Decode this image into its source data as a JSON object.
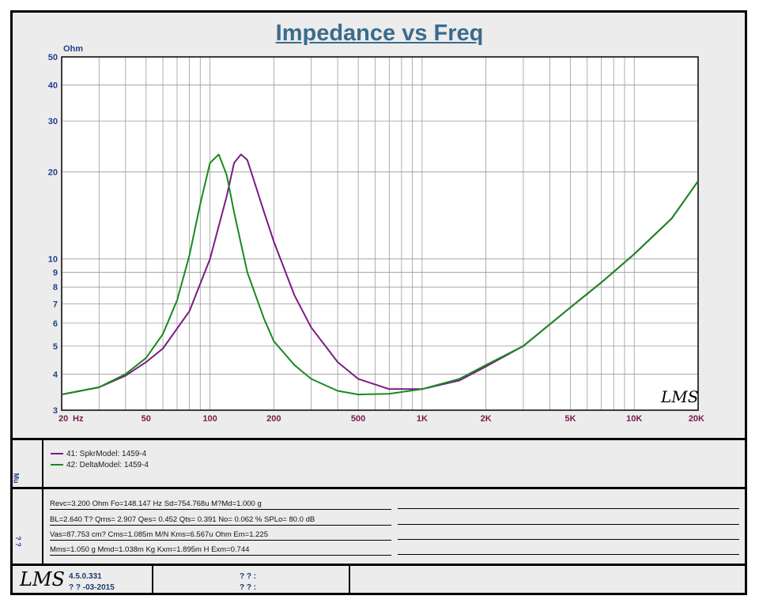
{
  "header": {
    "title": "Impedance vs Freq"
  },
  "chart_data": {
    "type": "line",
    "title": "Impedance vs Freq",
    "ylabel": "Ohm",
    "xlabel": "Hz",
    "xscale": "log",
    "yscale": "log",
    "xlim": [
      20,
      20000
    ],
    "ylim": [
      3,
      50
    ],
    "grid": true,
    "x_ticks": [
      {
        "v": 20,
        "label": "20"
      },
      {
        "v": 50,
        "label": "50"
      },
      {
        "v": 100,
        "label": "100"
      },
      {
        "v": 200,
        "label": "200"
      },
      {
        "v": 500,
        "label": "500"
      },
      {
        "v": 1000,
        "label": "1K"
      },
      {
        "v": 2000,
        "label": "2K"
      },
      {
        "v": 5000,
        "label": "5K"
      },
      {
        "v": 10000,
        "label": "10K"
      },
      {
        "v": 20000,
        "label": "20K"
      }
    ],
    "y_ticks": [
      {
        "v": 3,
        "label": "3"
      },
      {
        "v": 4,
        "label": "4"
      },
      {
        "v": 5,
        "label": "5"
      },
      {
        "v": 6,
        "label": "6"
      },
      {
        "v": 7,
        "label": "7"
      },
      {
        "v": 8,
        "label": "8"
      },
      {
        "v": 9,
        "label": "9"
      },
      {
        "v": 10,
        "label": "10"
      },
      {
        "v": 20,
        "label": "20"
      },
      {
        "v": 30,
        "label": "30"
      },
      {
        "v": 40,
        "label": "40"
      },
      {
        "v": 50,
        "label": "50"
      }
    ],
    "series": [
      {
        "name": "41: SpkrModel: 1459-4",
        "color": "#7b1a86",
        "x": [
          20,
          30,
          40,
          50,
          60,
          80,
          100,
          120,
          130,
          140,
          150,
          160,
          180,
          200,
          250,
          300,
          400,
          500,
          700,
          1000,
          1500,
          2000,
          3000,
          5000,
          7000,
          10000,
          15000,
          20000
        ],
        "y": [
          3.4,
          3.6,
          3.95,
          4.4,
          4.9,
          6.6,
          10.0,
          16.5,
          21.5,
          23.0,
          22.0,
          19.0,
          14.5,
          11.5,
          7.5,
          5.8,
          4.4,
          3.85,
          3.55,
          3.55,
          3.8,
          4.25,
          5.0,
          6.8,
          8.3,
          10.4,
          13.8,
          18.6
        ]
      },
      {
        "name": "42: DeltaModel: 1459-4",
        "color": "#1a8a1e",
        "x": [
          20,
          30,
          40,
          50,
          60,
          70,
          80,
          90,
          100,
          110,
          120,
          130,
          150,
          180,
          200,
          250,
          300,
          400,
          500,
          700,
          1000,
          1500,
          2000,
          3000,
          5000,
          7000,
          10000,
          15000,
          20000
        ],
        "y": [
          3.4,
          3.6,
          4.0,
          4.55,
          5.5,
          7.2,
          10.3,
          15.5,
          21.5,
          23.0,
          19.5,
          14.5,
          9.0,
          6.2,
          5.2,
          4.3,
          3.85,
          3.5,
          3.4,
          3.42,
          3.55,
          3.85,
          4.3,
          5.0,
          6.8,
          8.3,
          10.4,
          13.8,
          18.6
        ]
      }
    ]
  },
  "legend": [
    {
      "label": "41: SpkrModel: 1459-4",
      "color": "#7b1a86"
    },
    {
      "label": "42: DeltaModel: 1459-4",
      "color": "#1a8a1e"
    }
  ],
  "params": [
    "Revc=3.200 Ohm  Fo=148.147 Hz  Sd=754.768u M?Md=1.000 g",
    "BL=2.640 T?   Qms= 2.907  Qes= 0.452  Qts= 0.391  No= 0.062 %  SPLo= 80.0 dB",
    "Vas=87.753 cm? Cms=1.085m M/N  Kms=6.567u Ohm  Em=1.225",
    "Mms=1.050 g  Mmd=1.038m Kg  Kxm=1.895m H  Exm=0.744"
  ],
  "side_labels": {
    "legend_side": "Mu",
    "params_side": "? ?"
  },
  "footer": {
    "logo": "LMS",
    "chart_logo": "LMS",
    "version": "4.5.0.331",
    "date": "? ? -03-2015",
    "field1": "? ? :",
    "field2": "? ? :"
  }
}
